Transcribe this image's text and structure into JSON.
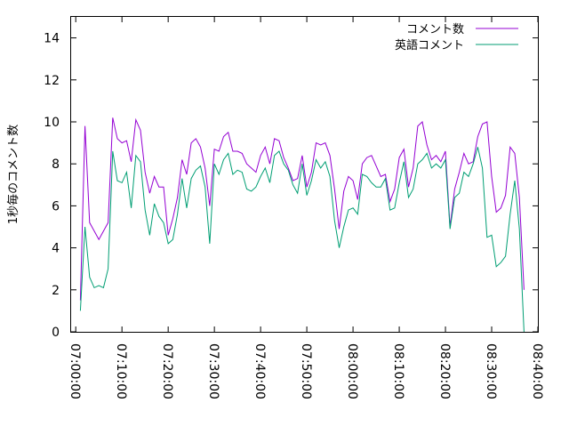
{
  "chart_data": {
    "type": "line",
    "title": "",
    "xlabel": "",
    "ylabel": "1秒毎のコメント数",
    "xlim": [
      "06:59:00",
      "08:40:00"
    ],
    "ylim": [
      0,
      15
    ],
    "x_ticks": [
      "07:00:00",
      "07:10:00",
      "07:20:00",
      "07:30:00",
      "07:40:00",
      "07:50:00",
      "08:00:00",
      "08:10:00",
      "08:20:00",
      "08:30:00",
      "08:40:00"
    ],
    "y_ticks": [
      "0",
      "2",
      "4",
      "6",
      "8",
      "10",
      "12",
      "14"
    ],
    "grid": false,
    "legend_position": "top-right",
    "x": [
      "07:01:00",
      "07:02:00",
      "07:03:00",
      "07:04:00",
      "07:05:00",
      "07:06:00",
      "07:07:00",
      "07:08:00",
      "07:09:00",
      "07:10:00",
      "07:11:00",
      "07:12:00",
      "07:13:00",
      "07:14:00",
      "07:15:00",
      "07:16:00",
      "07:17:00",
      "07:18:00",
      "07:19:00",
      "07:20:00",
      "07:21:00",
      "07:22:00",
      "07:23:00",
      "07:24:00",
      "07:25:00",
      "07:26:00",
      "07:27:00",
      "07:28:00",
      "07:29:00",
      "07:30:00",
      "07:31:00",
      "07:32:00",
      "07:33:00",
      "07:34:00",
      "07:35:00",
      "07:36:00",
      "07:37:00",
      "07:38:00",
      "07:39:00",
      "07:40:00",
      "07:41:00",
      "07:42:00",
      "07:43:00",
      "07:44:00",
      "07:45:00",
      "07:46:00",
      "07:47:00",
      "07:48:00",
      "07:49:00",
      "07:50:00",
      "07:51:00",
      "07:52:00",
      "07:53:00",
      "07:54:00",
      "07:55:00",
      "07:56:00",
      "07:57:00",
      "07:58:00",
      "07:59:00",
      "08:00:00",
      "08:01:00",
      "08:02:00",
      "08:03:00",
      "08:04:00",
      "08:05:00",
      "08:06:00",
      "08:07:00",
      "08:08:00",
      "08:09:00",
      "08:10:00",
      "08:11:00",
      "08:12:00",
      "08:13:00",
      "08:14:00",
      "08:15:00",
      "08:16:00",
      "08:17:00",
      "08:18:00",
      "08:19:00",
      "08:20:00",
      "08:21:00",
      "08:22:00",
      "08:23:00",
      "08:24:00",
      "08:25:00",
      "08:26:00",
      "08:27:00",
      "08:28:00",
      "08:29:00",
      "08:30:00",
      "08:31:00",
      "08:32:00",
      "08:33:00",
      "08:34:00",
      "08:35:00",
      "08:36:00",
      "08:37:00"
    ],
    "series": [
      {
        "name": "コメント数",
        "color": "#9400d3",
        "values": [
          1.5,
          9.8,
          5.2,
          4.8,
          4.4,
          4.8,
          5.2,
          10.2,
          9.2,
          9.0,
          9.1,
          8.1,
          10.1,
          9.6,
          7.6,
          6.6,
          7.4,
          6.9,
          6.9,
          4.6,
          5.4,
          6.4,
          8.2,
          7.5,
          9.0,
          9.2,
          8.8,
          7.8,
          6.0,
          8.7,
          8.6,
          9.3,
          9.5,
          8.6,
          8.6,
          8.5,
          8.0,
          7.8,
          7.6,
          8.4,
          8.8,
          8.0,
          9.2,
          9.1,
          8.3,
          7.8,
          7.2,
          7.3,
          8.4,
          6.9,
          7.6,
          9.0,
          8.9,
          9.0,
          8.4,
          6.8,
          4.9,
          6.7,
          7.4,
          7.2,
          6.3,
          8.0,
          8.3,
          8.4,
          7.9,
          7.4,
          7.5,
          6.2,
          6.8,
          8.3,
          8.7,
          6.9,
          7.8,
          9.8,
          10.0,
          8.9,
          8.2,
          8.4,
          8.1,
          8.6,
          5.0,
          6.8,
          7.6,
          8.5,
          8.0,
          8.1,
          9.3,
          9.9,
          10.0,
          7.4,
          5.7,
          5.9,
          6.5,
          8.8,
          8.5,
          6.4,
          2.0
        ]
      },
      {
        "name": "英語コメント",
        "color": "#009e73",
        "values": [
          1.0,
          5.0,
          2.6,
          2.1,
          2.2,
          2.1,
          3.0,
          8.6,
          7.2,
          7.1,
          7.6,
          5.9,
          8.4,
          8.1,
          5.8,
          4.6,
          6.1,
          5.5,
          5.2,
          4.2,
          4.4,
          5.6,
          7.3,
          5.9,
          7.3,
          7.7,
          7.9,
          6.9,
          4.2,
          8.0,
          7.5,
          8.2,
          8.5,
          7.5,
          7.7,
          7.6,
          6.8,
          6.7,
          6.9,
          7.4,
          7.8,
          7.1,
          8.4,
          8.6,
          8.0,
          7.7,
          7.0,
          6.6,
          8.0,
          6.5,
          7.2,
          8.2,
          7.8,
          8.1,
          7.4,
          5.3,
          4.0,
          5.0,
          5.8,
          5.9,
          5.6,
          7.5,
          7.4,
          7.1,
          6.9,
          6.9,
          7.3,
          5.8,
          5.9,
          7.1,
          8.1,
          6.4,
          6.8,
          8.0,
          8.2,
          8.5,
          7.8,
          8.0,
          7.8,
          8.2,
          4.9,
          6.4,
          6.6,
          7.6,
          7.4,
          8.0,
          8.8,
          7.8,
          4.5,
          4.6,
          3.1,
          3.3,
          3.6,
          5.6,
          7.2,
          4.9,
          0.0
        ]
      }
    ]
  }
}
